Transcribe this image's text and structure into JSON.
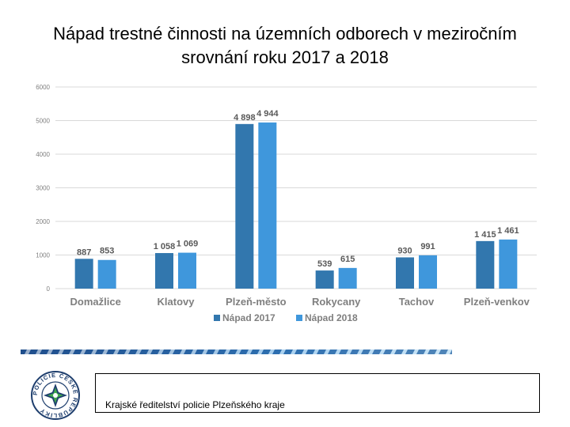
{
  "slide": {
    "title_line1": "Nápad trestné činnosti na územních odborech v meziročním",
    "title_line2": "srovnání roku 2017 a 2018",
    "footer_text": "Krajské ředitelství policie Plzeňského kraje",
    "logo_text": "POLICIE ČESKÉ REPUBLIKY"
  },
  "colors": {
    "series_2017": "#3277ae",
    "series_2018": "#3f97dc",
    "grid": "#d9d9d9",
    "tick": "#7f7f7f",
    "category": "#7f7f7f",
    "label": "#595959"
  },
  "chart_data": {
    "type": "bar",
    "title": "Nápad trestné činnosti na územních odborech v meziročním srovnání roku 2017 a 2018",
    "categories": [
      "Domažlice",
      "Klatovy",
      "Plzeň-město",
      "Rokycany",
      "Tachov",
      "Plzeň-venkov"
    ],
    "series": [
      {
        "name": "Nápad 2017",
        "values": [
          887,
          1058,
          4898,
          539,
          930,
          1415
        ],
        "labels": [
          "887",
          "1 058",
          "4 898",
          "539",
          "930",
          "1 415"
        ]
      },
      {
        "name": "Nápad 2018",
        "values": [
          853,
          1069,
          4944,
          615,
          991,
          1461
        ],
        "labels": [
          "853",
          "1 069",
          "4 944",
          "615",
          "991",
          "1 461"
        ]
      }
    ],
    "yticks": [
      "0",
      "1000",
      "2000",
      "3000",
      "4000",
      "5000",
      "6000"
    ],
    "ylim": [
      0,
      6000
    ],
    "xlabel": "",
    "ylabel": "",
    "grid": true,
    "legend_position": "bottom"
  }
}
